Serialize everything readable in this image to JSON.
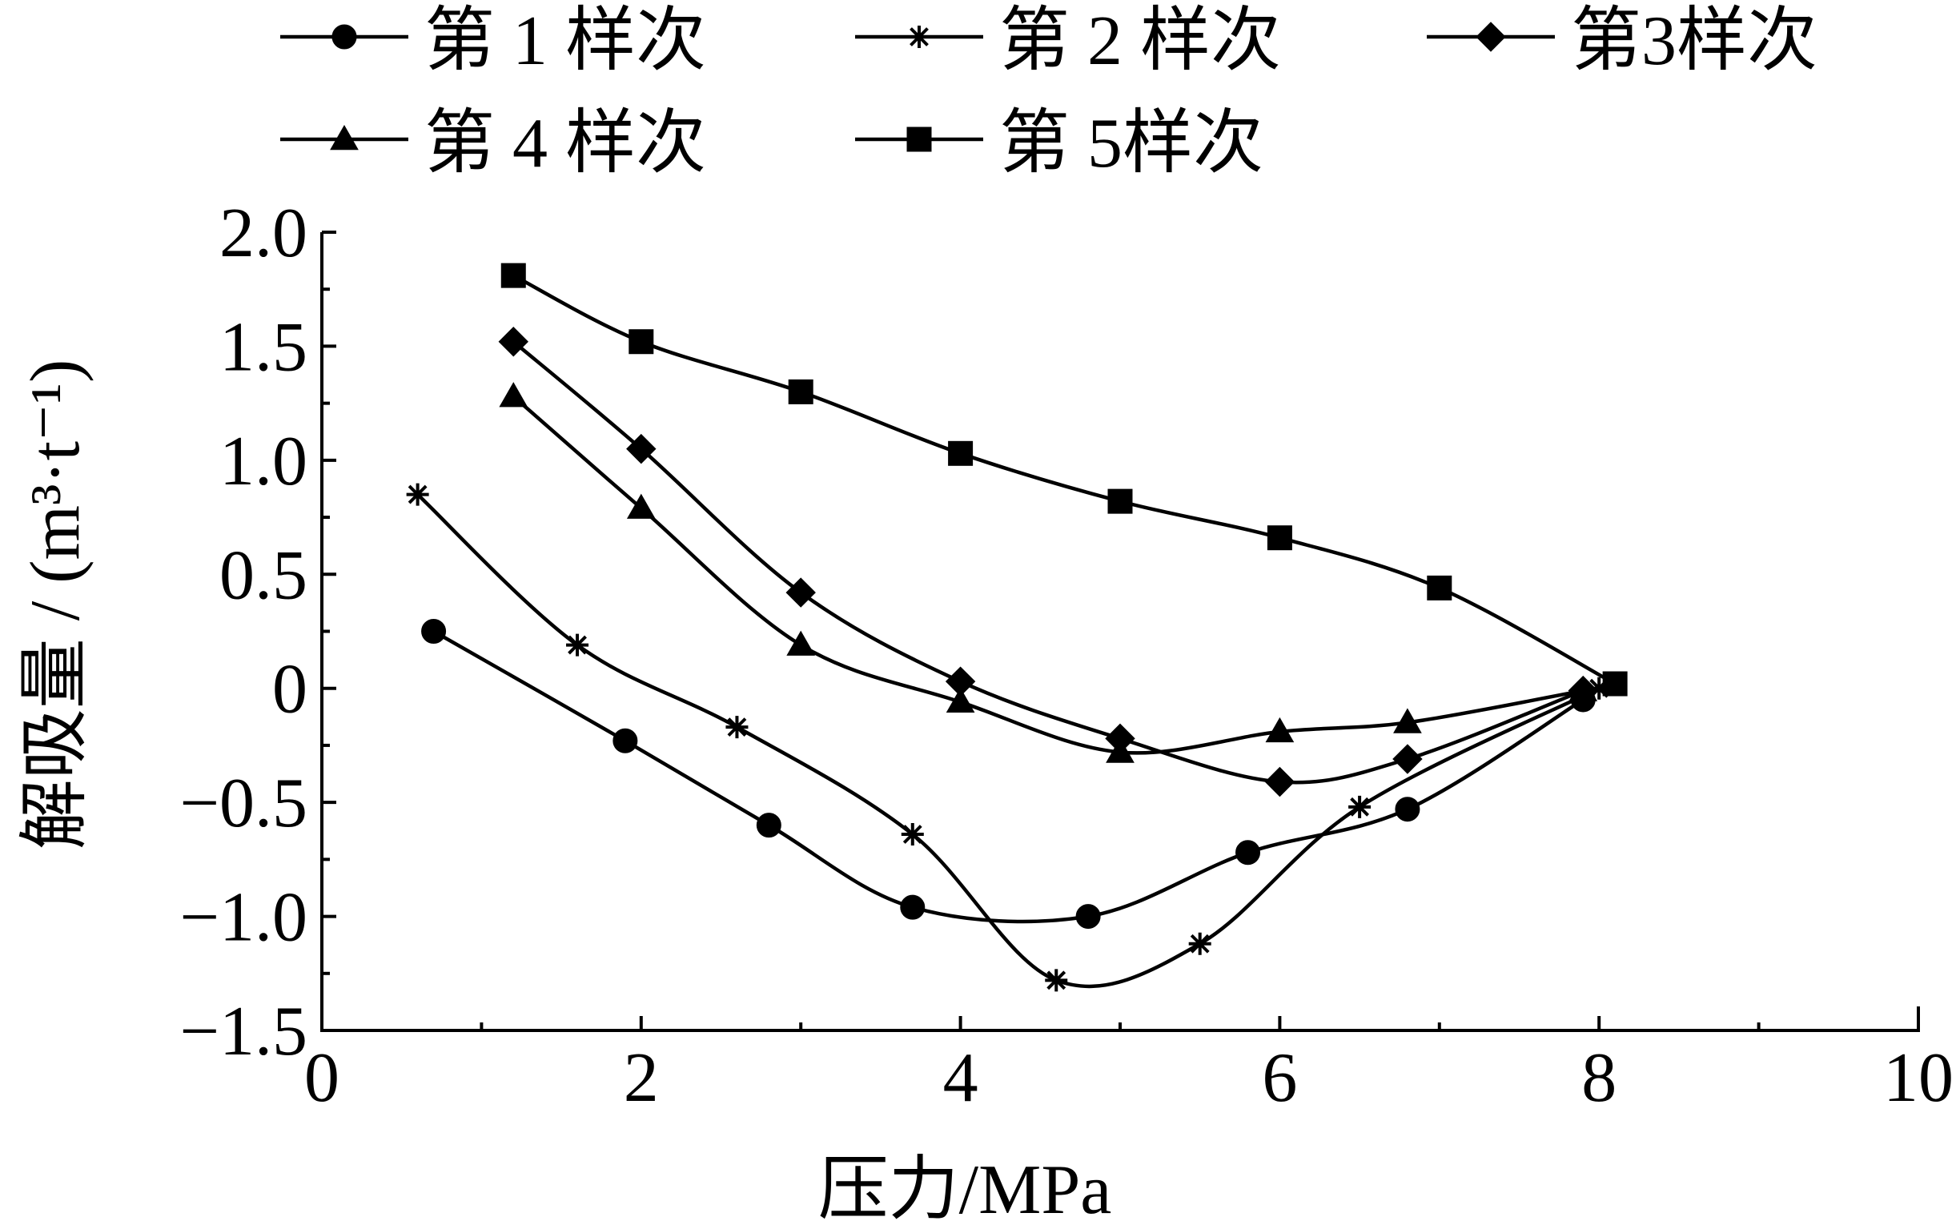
{
  "chart_data": {
    "type": "line",
    "xlabel": "压力/MPa",
    "ylabel": "解吸量 / (m³·t⁻¹)",
    "xlim": [
      0,
      10
    ],
    "ylim": [
      -1.5,
      2.0
    ],
    "xticks": [
      "0",
      "2",
      "4",
      "6",
      "8",
      "10"
    ],
    "yticks": [
      "2.0",
      "1.5",
      "1.0",
      "0.5",
      "0",
      "−0.5",
      "−1.0",
      "−1.5"
    ],
    "grid": false,
    "legend_position": "top",
    "series": [
      {
        "name": "第 1 样次",
        "marker": "circle",
        "x": [
          0.7,
          1.9,
          2.8,
          3.7,
          4.8,
          5.8,
          6.8,
          7.9
        ],
        "y": [
          0.25,
          -0.23,
          -0.6,
          -0.96,
          -1.0,
          -0.72,
          -0.53,
          -0.05
        ]
      },
      {
        "name": "第 2 样次",
        "marker": "star",
        "x": [
          0.6,
          1.6,
          2.6,
          3.7,
          4.6,
          5.5,
          6.5,
          8.0
        ],
        "y": [
          0.85,
          0.19,
          -0.17,
          -0.64,
          -1.28,
          -1.12,
          -0.52,
          0.0
        ]
      },
      {
        "name": "第3样次",
        "marker": "diamond",
        "x": [
          1.2,
          2.0,
          3.0,
          4.0,
          5.0,
          6.0,
          6.8,
          7.9
        ],
        "y": [
          1.52,
          1.05,
          0.42,
          0.03,
          -0.22,
          -0.41,
          -0.31,
          -0.01
        ]
      },
      {
        "name": "第 4 样次",
        "marker": "triangle",
        "x": [
          1.2,
          2.0,
          3.0,
          4.0,
          5.0,
          6.0,
          6.8,
          7.9
        ],
        "y": [
          1.28,
          0.79,
          0.19,
          -0.06,
          -0.28,
          -0.19,
          -0.15,
          -0.01
        ]
      },
      {
        "name": "第 5样次",
        "marker": "square",
        "x": [
          1.2,
          2.0,
          3.0,
          4.0,
          5.0,
          6.0,
          7.0,
          8.1
        ],
        "y": [
          1.81,
          1.52,
          1.3,
          1.03,
          0.82,
          0.66,
          0.44,
          0.02
        ]
      }
    ]
  }
}
